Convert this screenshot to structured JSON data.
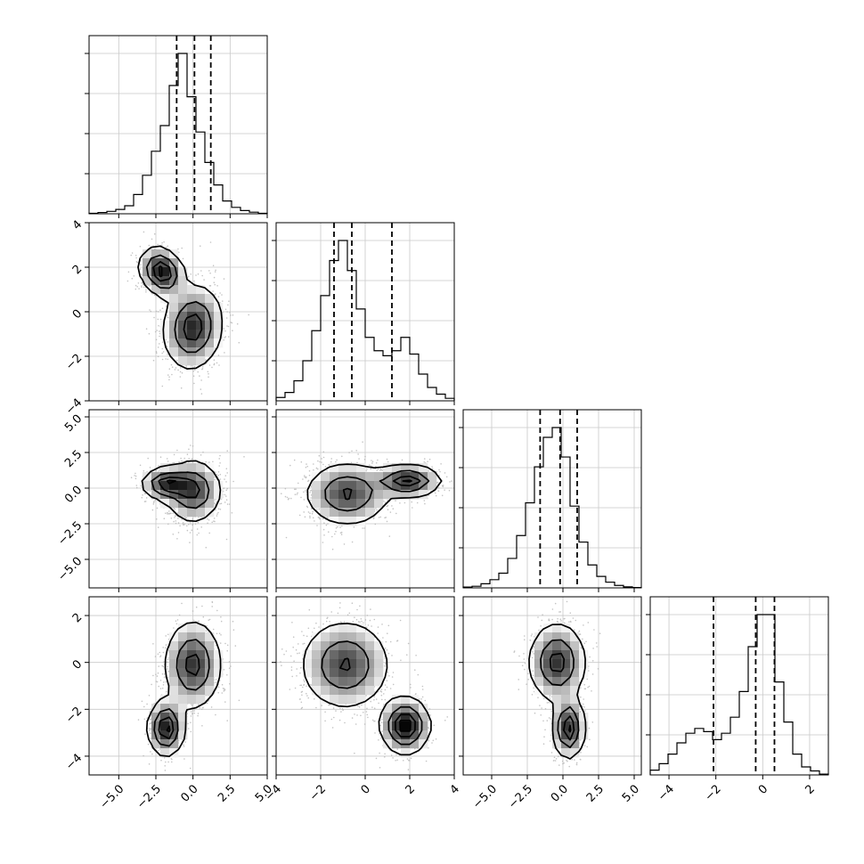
{
  "chart_data": {
    "type": "corner",
    "colors": {
      "line": "#000000",
      "grid": "#c8c8c8",
      "scatter": "#b4b4b4"
    },
    "grid": true,
    "variables": [
      {
        "index": 0,
        "range": [
          -7,
          5
        ],
        "ticks": [
          -5.0,
          -2.5,
          0.0,
          2.5,
          5.0
        ],
        "tick_labels": [
          "−5.0",
          "−2.5",
          "0.0",
          "2.5",
          "5.0"
        ],
        "quantiles": [
          -1.1,
          0.1,
          1.2
        ]
      },
      {
        "index": 1,
        "range": [
          -4,
          4
        ],
        "ticks": [
          -4,
          -2,
          0,
          2,
          4
        ],
        "tick_labels": [
          "−4",
          "−2",
          "0",
          "2",
          "4"
        ],
        "quantiles": [
          -1.4,
          -0.6,
          1.2
        ]
      },
      {
        "index": 2,
        "range": [
          -7,
          5.5
        ],
        "ticks": [
          -5.0,
          -2.5,
          0.0,
          2.5,
          5.0
        ],
        "tick_labels": [
          "−5.0",
          "−2.5",
          "0.0",
          "2.5",
          "5.0"
        ],
        "quantiles": [
          -1.6,
          -0.2,
          1.0
        ]
      },
      {
        "index": 3,
        "range": [
          -4.8,
          2.8
        ],
        "ticks": [
          -4,
          -2,
          0,
          2
        ],
        "tick_labels": [
          "−4",
          "−2",
          "0",
          "2"
        ],
        "quantiles": [
          -2.1,
          -0.3,
          0.5
        ]
      }
    ],
    "histograms": [
      {
        "var": 0,
        "values": [
          0.3,
          0.8,
          1.5,
          2.7,
          5,
          12,
          24,
          39,
          55,
          80,
          100,
          73,
          51,
          32,
          18,
          8,
          4,
          2,
          1,
          0.3
        ]
      },
      {
        "var": 1,
        "values": [
          2,
          5,
          12,
          24,
          42,
          63,
          84,
          96,
          78,
          55,
          38,
          30,
          27,
          30,
          38,
          28,
          16,
          8,
          4,
          1.5
        ]
      },
      {
        "var": 2,
        "values": [
          0.5,
          1,
          2.5,
          5,
          9,
          18,
          32,
          52,
          74,
          92,
          98,
          80,
          50,
          28,
          14,
          7,
          3.5,
          1.5,
          0.6,
          0.2
        ]
      },
      {
        "var": 3,
        "values": [
          3,
          7,
          13,
          20,
          26,
          29,
          27,
          22,
          26,
          36,
          52,
          80,
          100,
          100,
          58,
          33,
          13,
          5,
          2.5,
          0.5
        ]
      }
    ],
    "pairs": [
      {
        "x": 1,
        "y": 0,
        "modes": [
          {
            "cx": -2.1,
            "cy": 1.8,
            "sx": 0.75,
            "sy": 0.55,
            "rho": -0.2,
            "w": 0.33
          },
          {
            "cx": 0.0,
            "cy": -0.7,
            "sx": 1.0,
            "sy": 0.95,
            "rho": 0.1,
            "w": 0.67
          }
        ]
      },
      {
        "x": 2,
        "y": 0,
        "modes": [
          {
            "cx": -1.8,
            "cy": 0.3,
            "sx": 0.85,
            "sy": 0.55,
            "rho": 0.0,
            "w": 0.33
          },
          {
            "cx": 0.0,
            "cy": -0.2,
            "sx": 0.95,
            "sy": 1.1,
            "rho": 0.0,
            "w": 0.67
          }
        ]
      },
      {
        "x": 2,
        "y": 1,
        "modes": [
          {
            "cx": -0.8,
            "cy": -0.4,
            "sx": 0.95,
            "sy": 1.1,
            "rho": 0.0,
            "w": 0.67
          },
          {
            "cx": 1.9,
            "cy": 0.5,
            "sx": 0.75,
            "sy": 0.55,
            "rho": 0.0,
            "w": 0.33
          }
        ]
      },
      {
        "x": 3,
        "y": 0,
        "modes": [
          {
            "cx": 0.0,
            "cy": -0.1,
            "sx": 0.95,
            "sy": 0.95,
            "rho": 0.0,
            "w": 0.67
          },
          {
            "cx": -1.8,
            "cy": -2.8,
            "sx": 0.6,
            "sy": 0.6,
            "rho": 0.0,
            "w": 0.33
          }
        ]
      },
      {
        "x": 3,
        "y": 1,
        "modes": [
          {
            "cx": -0.9,
            "cy": -0.1,
            "sx": 1.0,
            "sy": 0.95,
            "rho": 0.0,
            "w": 0.67
          },
          {
            "cx": 1.8,
            "cy": -2.7,
            "sx": 0.55,
            "sy": 0.6,
            "rho": 0.0,
            "w": 0.33
          }
        ]
      },
      {
        "x": 3,
        "y": 2,
        "modes": [
          {
            "cx": -0.4,
            "cy": 0.0,
            "sx": 1.0,
            "sy": 0.85,
            "rho": 0.0,
            "w": 0.67
          },
          {
            "cx": 0.4,
            "cy": -2.8,
            "sx": 0.55,
            "sy": 0.65,
            "rho": 0.0,
            "w": 0.33
          }
        ]
      }
    ]
  }
}
